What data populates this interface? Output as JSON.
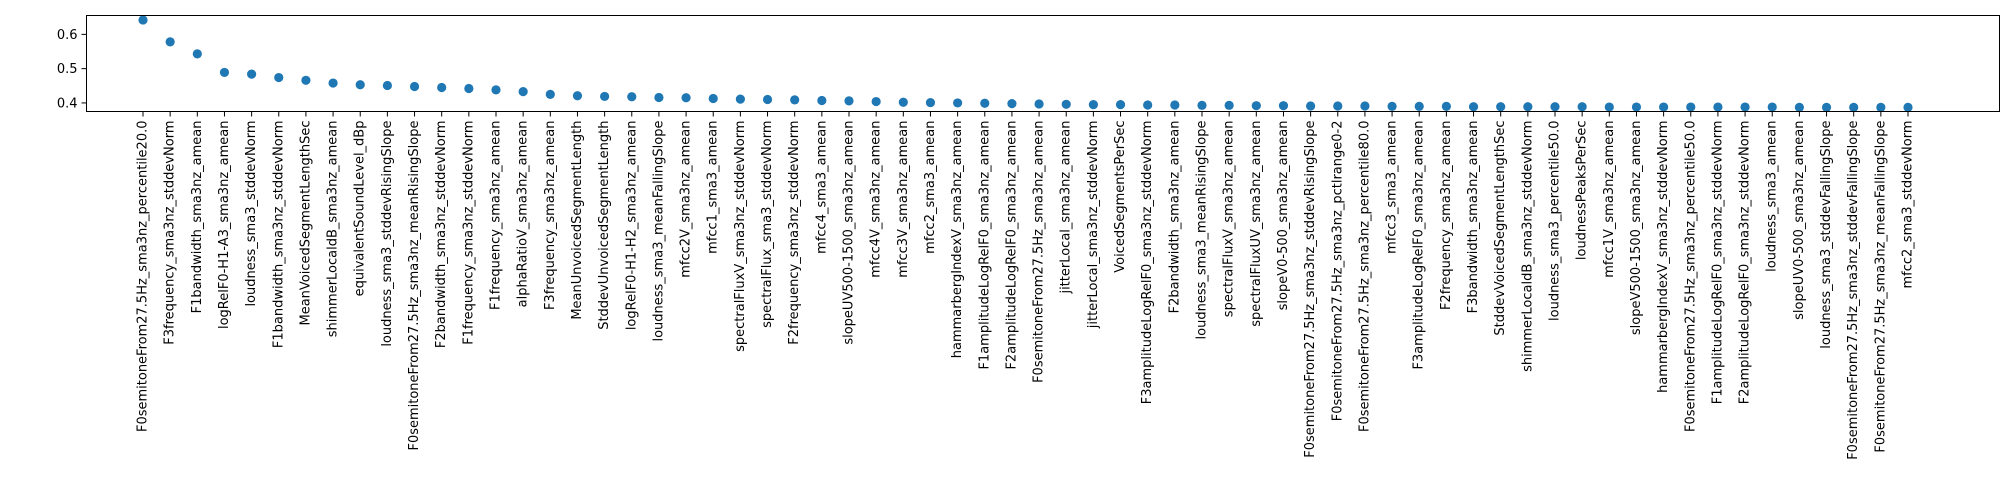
{
  "chart_data": {
    "type": "scatter",
    "title": "",
    "xlabel": "",
    "ylabel": "",
    "ylim": [
      0.375,
      0.655
    ],
    "y_ticks": [
      0.4,
      0.5,
      0.6
    ],
    "y_tick_labels": [
      "0.4",
      "0.5",
      "0.6"
    ],
    "grid": false,
    "marker_color": "#1f77b4",
    "categories": [
      "F0semitoneFrom27.5Hz_sma3nz_percentile20.0",
      "F3frequency_sma3nz_stddevNorm",
      "F1bandwidth_sma3nz_amean",
      "logRelF0-H1-A3_sma3nz_amean",
      "loudness_sma3_stddevNorm",
      "F1bandwidth_sma3nz_stddevNorm",
      "MeanVoicedSegmentLengthSec",
      "shimmerLocaldB_sma3nz_amean",
      "equivalentSoundLevel_dBp",
      "loudness_sma3_stddevRisingSlope",
      "F0semitoneFrom27.5Hz_sma3nz_meanRisingSlope",
      "F2bandwidth_sma3nz_stddevNorm",
      "F1frequency_sma3nz_stddevNorm",
      "F1frequency_sma3nz_amean",
      "alphaRatioV_sma3nz_amean",
      "F3frequency_sma3nz_amean",
      "MeanUnvoicedSegmentLength",
      "StddevUnvoicedSegmentLength",
      "logRelF0-H1-H2_sma3nz_amean",
      "loudness_sma3_meanFallingSlope",
      "mfcc2V_sma3nz_amean",
      "mfcc1_sma3_amean",
      "spectralFluxV_sma3nz_stddevNorm",
      "spectralFlux_sma3_stddevNorm",
      "F2frequency_sma3nz_stddevNorm",
      "mfcc4_sma3_amean",
      "slopeUV500-1500_sma3nz_amean",
      "mfcc4V_sma3nz_amean",
      "mfcc3V_sma3nz_amean",
      "mfcc2_sma3_amean",
      "hammarbergIndexV_sma3nz_amean",
      "F1amplitudeLogRelF0_sma3nz_amean",
      "F2amplitudeLogRelF0_sma3nz_amean",
      "F0semitoneFrom27.5Hz_sma3nz_amean",
      "jitterLocal_sma3nz_amean",
      "jitterLocal_sma3nz_stddevNorm",
      "VoicedSegmentsPerSec",
      "F3amplitudeLogRelF0_sma3nz_stddevNorm",
      "F2bandwidth_sma3nz_amean",
      "loudness_sma3_meanRisingSlope",
      "spectralFluxV_sma3nz_amean",
      "spectralFluxUV_sma3nz_amean",
      "slopeV0-500_sma3nz_amean",
      "F0semitoneFrom27.5Hz_sma3nz_stddevRisingSlope",
      "F0semitoneFrom27.5Hz_sma3nz_pctlrange0-2",
      "F0semitoneFrom27.5Hz_sma3nz_percentile80.0",
      "mfcc3_sma3_amean",
      "F3amplitudeLogRelF0_sma3nz_amean",
      "F2frequency_sma3nz_amean",
      "F3bandwidth_sma3nz_amean",
      "StddevVoicedSegmentLengthSec",
      "shimmerLocaldB_sma3nz_stddevNorm",
      "loudness_sma3_percentile50.0",
      "loudnessPeaksPerSec",
      "mfcc1V_sma3nz_amean",
      "slopeV500-1500_sma3nz_amean",
      "hammarbergIndexV_sma3nz_stddevNorm",
      "F0semitoneFrom27.5Hz_sma3nz_percentile50.0",
      "F1amplitudeLogRelF0_sma3nz_stddevNorm",
      "F2amplitudeLogRelF0_sma3nz_stddevNorm",
      "loudness_sma3_amean",
      "slopeUV0-500_sma3nz_amean",
      "loudness_sma3_stddevFallingSlope",
      "F0semitoneFrom27.5Hz_sma3nz_stddevFallingSlope",
      "F0semitoneFrom27.5Hz_sma3nz_meanFallingSlope",
      "mfcc2_sma3_stddevNorm"
    ],
    "values": [
      0.642,
      0.578,
      0.543,
      0.489,
      0.484,
      0.474,
      0.466,
      0.458,
      0.453,
      0.451,
      0.448,
      0.445,
      0.442,
      0.438,
      0.433,
      0.425,
      0.421,
      0.419,
      0.418,
      0.416,
      0.415,
      0.413,
      0.411,
      0.41,
      0.409,
      0.407,
      0.406,
      0.404,
      0.402,
      0.401,
      0.4,
      0.399,
      0.398,
      0.397,
      0.396,
      0.395,
      0.395,
      0.394,
      0.394,
      0.393,
      0.393,
      0.392,
      0.392,
      0.391,
      0.391,
      0.391,
      0.39,
      0.39,
      0.39,
      0.389,
      0.389,
      0.389,
      0.389,
      0.389,
      0.388,
      0.388,
      0.388,
      0.388,
      0.388,
      0.388,
      0.388,
      0.387,
      0.387,
      0.387,
      0.387,
      0.387
    ]
  }
}
